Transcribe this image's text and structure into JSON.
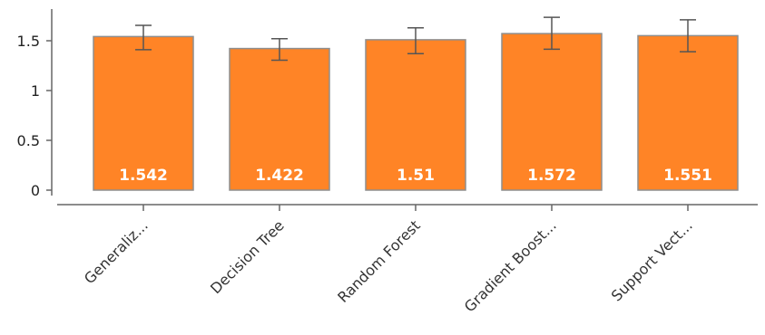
{
  "chart_data": {
    "type": "bar",
    "categories": [
      "Generaliz...",
      "Decision Tree",
      "Random Forest",
      "Gradient Boost...",
      "Support Vect..."
    ],
    "values": [
      1.542,
      1.422,
      1.51,
      1.572,
      1.551
    ],
    "value_labels": [
      "1.542",
      "1.422",
      "1.51",
      "1.572",
      "1.551"
    ],
    "error": [
      {
        "low": 1.41,
        "high": 1.655
      },
      {
        "low": 1.305,
        "high": 1.52
      },
      {
        "low": 1.37,
        "high": 1.63
      },
      {
        "low": 1.415,
        "high": 1.735
      },
      {
        "low": 1.39,
        "high": 1.71
      }
    ],
    "yticks": [
      0,
      0.5,
      1,
      1.5
    ],
    "ytick_labels": [
      "0",
      "0.5",
      "1",
      "1.5"
    ],
    "ylim": [
      0,
      1.8
    ],
    "title": "",
    "xlabel": "",
    "ylabel": "",
    "grid": false,
    "colors": {
      "bar_fill": "#FF8426",
      "bar_stroke": "#8E8E8E",
      "error_bar": "#555555",
      "axis": "#666666",
      "data_label": "#FFFFFF"
    }
  }
}
